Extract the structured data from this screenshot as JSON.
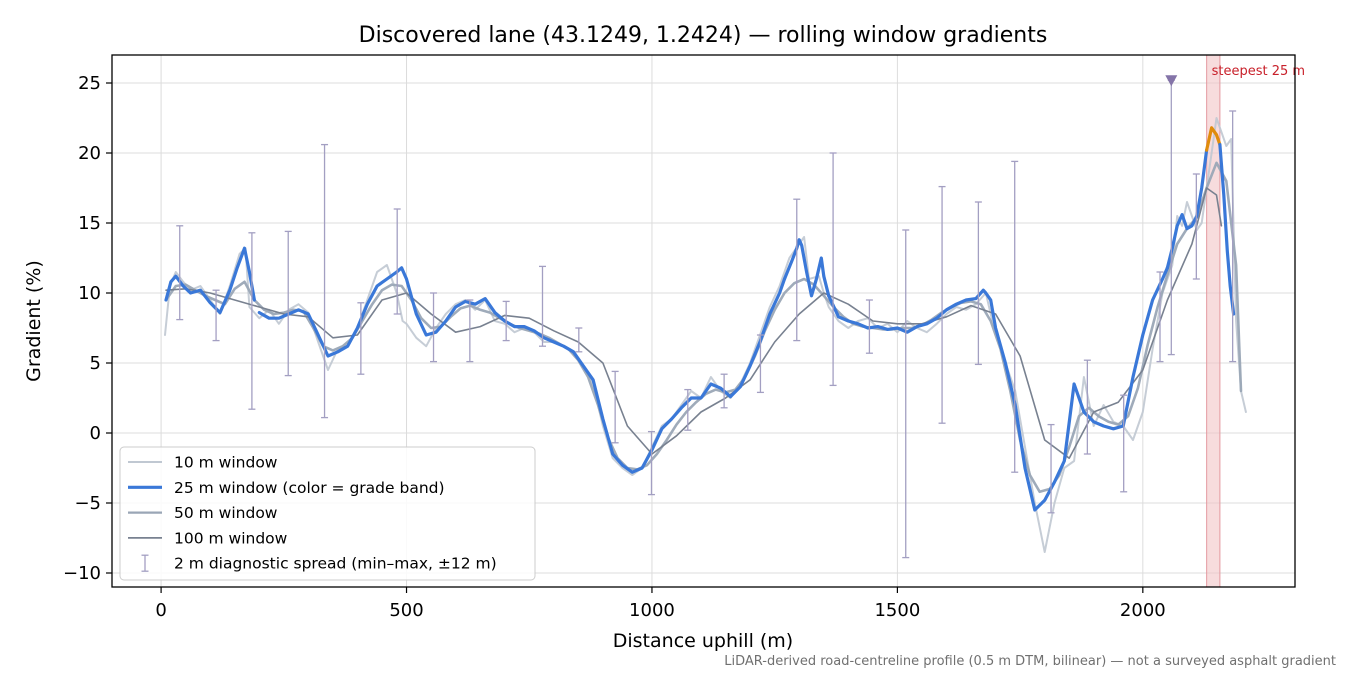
{
  "chart_data": {
    "type": "line",
    "title": "Discovered lane (43.1249, 1.2424) — rolling window gradients",
    "xlabel": "Distance uphill (m)",
    "ylabel": "Gradient (%)",
    "xlim": [
      -100,
      2310
    ],
    "ylim": [
      -11,
      27
    ],
    "x_ticks": [
      0,
      500,
      1000,
      1500,
      2000
    ],
    "y_ticks": [
      -10,
      -5,
      0,
      5,
      10,
      15,
      20,
      25
    ],
    "x_tick_labels": [
      "0",
      "500",
      "1000",
      "1500",
      "2000"
    ],
    "y_tick_labels": [
      "−10",
      "−5",
      "0",
      "5",
      "10",
      "15",
      "20",
      "25"
    ],
    "grid": true,
    "legend_position": "lower-left",
    "footnote": "LiDAR-derived road-centreline profile (0.5 m DTM, bilinear) — not a surveyed asphalt gradient",
    "colors": {
      "w10": "#c0c8d2",
      "w25_base": "#3a78d8",
      "w25_steep": "#e08c0c",
      "w50": "#9aa6b6",
      "w100": "#788190",
      "errorbar": "#a39fc2",
      "marker": "#8474a8",
      "band_fill": "#f2c4c6",
      "band_edge": "#e49aa0",
      "band_label": "#c8202a"
    },
    "steepest_band": {
      "x": [
        2130,
        2157
      ],
      "label": "steepest 25 m"
    },
    "peak_marker": {
      "x": 2058,
      "y": 25.2,
      "shape": "triangle-down"
    },
    "legend": [
      {
        "label": "10 m window",
        "style": "w10"
      },
      {
        "label": "25 m window (color = grade band)",
        "style": "w25"
      },
      {
        "label": "50 m window",
        "style": "w50"
      },
      {
        "label": "100 m window",
        "style": "w100"
      },
      {
        "label": "2 m diagnostic spread (min–max, ±12 m)",
        "style": "errorbar"
      }
    ],
    "series": [
      {
        "name": "10 m window",
        "x": [
          8,
          18,
          30,
          45,
          60,
          80,
          100,
          120,
          140,
          160,
          172,
          180,
          200,
          220,
          240,
          260,
          280,
          300,
          320,
          340,
          360,
          380,
          400,
          420,
          440,
          460,
          480,
          492,
          500,
          520,
          540,
          560,
          580,
          600,
          620,
          640,
          660,
          680,
          700,
          720,
          740,
          760,
          780,
          800,
          820,
          840,
          860,
          880,
          900,
          920,
          940,
          960,
          980,
          1000,
          1020,
          1040,
          1060,
          1080,
          1100,
          1120,
          1140,
          1160,
          1180,
          1200,
          1220,
          1240,
          1260,
          1280,
          1300,
          1310,
          1320,
          1340,
          1350,
          1360,
          1380,
          1400,
          1420,
          1440,
          1460,
          1480,
          1500,
          1520,
          1540,
          1560,
          1580,
          1600,
          1620,
          1640,
          1660,
          1680,
          1700,
          1720,
          1740,
          1760,
          1780,
          1800,
          1820,
          1840,
          1860,
          1880,
          1900,
          1920,
          1940,
          1960,
          1980,
          2000,
          2020,
          2040,
          2060,
          2070,
          2080,
          2090,
          2100,
          2110,
          2120,
          2130,
          2140,
          2150,
          2160,
          2170,
          2180,
          2190,
          2200,
          2210
        ],
        "y": [
          7,
          10.5,
          11.5,
          10.8,
          10.2,
          10.5,
          9.5,
          8.5,
          10.5,
          12.8,
          13.2,
          9,
          8.2,
          8.8,
          7.8,
          8.8,
          9.2,
          8.6,
          6.5,
          4.5,
          6,
          6.2,
          7.5,
          9.5,
          11.5,
          12,
          10,
          8,
          7.8,
          6.8,
          6.2,
          7.5,
          8.5,
          9.2,
          9.5,
          8.8,
          9.5,
          8,
          7.8,
          7.2,
          7.5,
          7.2,
          6.5,
          6.5,
          6.2,
          5.8,
          4.8,
          3.5,
          0.5,
          -1.8,
          -2.5,
          -3,
          -2.5,
          -1,
          0.5,
          1,
          2,
          3,
          2.5,
          4,
          3,
          2.5,
          3.5,
          5,
          7,
          9,
          10.5,
          12.5,
          13.5,
          14,
          11,
          11.2,
          10,
          9,
          8,
          7.5,
          8,
          8.2,
          7.5,
          7.8,
          7.2,
          8,
          7.5,
          7.2,
          7.8,
          8.5,
          9,
          8.8,
          9.2,
          10,
          7,
          5,
          3,
          -1,
          -5,
          -8.5,
          -5,
          -2.5,
          -2,
          4,
          0.5,
          2,
          0.8,
          0.5,
          -0.5,
          1.5,
          6,
          10,
          12,
          15.5,
          14.8,
          16.5,
          15.5,
          14.5,
          15,
          17.5,
          20,
          22.5,
          21.5,
          20.5,
          21,
          8,
          3,
          1.5
        ]
      },
      {
        "name": "25 m window",
        "x": [
          10,
          20,
          30,
          45,
          60,
          80,
          100,
          120,
          140,
          155,
          170,
          180,
          190
        ],
        "y": [
          9.5,
          10.8,
          11.2,
          10.5,
          10,
          10.2,
          9.3,
          8.6,
          10.2,
          11.8,
          13.2,
          11.5,
          9.5
        ]
      },
      {
        "name": "25 m window",
        "x": [
          200,
          220,
          240,
          260,
          280,
          300,
          320,
          340,
          360,
          380,
          400,
          420,
          440,
          460,
          480,
          490,
          500,
          520,
          540,
          560,
          580,
          600,
          620,
          640,
          660,
          680,
          700,
          720,
          740,
          760,
          780,
          800,
          820,
          840,
          860,
          880,
          900,
          920,
          940,
          960,
          980,
          1000,
          1020,
          1040,
          1060,
          1080,
          1100,
          1120,
          1140,
          1160,
          1180,
          1200,
          1220,
          1240,
          1260,
          1270
        ],
        "y": [
          8.6,
          8.2,
          8.2,
          8.5,
          8.8,
          8.5,
          7,
          5.5,
          5.8,
          6.2,
          7.5,
          9.2,
          10.5,
          11,
          11.5,
          11.8,
          11,
          8.5,
          7,
          7.2,
          8,
          9,
          9.4,
          9.2,
          9.6,
          8.6,
          8,
          7.6,
          7.6,
          7.3,
          6.8,
          6.5,
          6.2,
          5.8,
          4.8,
          3.8,
          1,
          -1.5,
          -2.3,
          -2.8,
          -2.5,
          -1.2,
          0.3,
          1,
          1.8,
          2.5,
          2.5,
          3.5,
          3.2,
          2.6,
          3.3,
          4.8,
          6.5,
          8.5,
          10,
          11
        ]
      },
      {
        "name": "25 m window",
        "x": [
          1270,
          1285,
          1295,
          1300,
          1305,
          1315,
          1325,
          1335,
          1345,
          1350,
          1360
        ],
        "y": [
          11,
          12.3,
          13.2,
          13.8,
          13.4,
          11.5,
          9.8,
          11,
          12.5,
          11.2,
          9.8
        ]
      },
      {
        "name": "25 m window",
        "x": [
          1360,
          1380,
          1400,
          1420,
          1440,
          1460,
          1480,
          1500,
          1520,
          1540,
          1560,
          1580,
          1600,
          1620,
          1640,
          1660,
          1675,
          1680,
          1690,
          1700,
          1720,
          1740,
          1760,
          1780,
          1800,
          1820,
          1840,
          1860,
          1880,
          1900,
          1920,
          1940,
          1960,
          1980,
          2000,
          2020,
          2040,
          2050
        ],
        "y": [
          9.8,
          8.3,
          8,
          7.8,
          7.5,
          7.6,
          7.4,
          7.5,
          7.2,
          7.6,
          7.8,
          8.2,
          8.8,
          9.2,
          9.5,
          9.6,
          10.2,
          10,
          9.5,
          7.5,
          5,
          2,
          -2.5,
          -5.5,
          -4.8,
          -3.5,
          -2,
          3.5,
          1.5,
          0.8,
          0.5,
          0.3,
          0.5,
          4,
          7,
          9.5,
          11,
          11.8
        ]
      },
      {
        "name": "25 m window",
        "x": [
          2050,
          2060,
          2070,
          2080,
          2090,
          2100,
          2110,
          2120,
          2130
        ],
        "y": [
          11.8,
          13.2,
          14.8,
          15.6,
          14.6,
          14.8,
          15.5,
          17.5,
          20.2
        ]
      },
      {
        "name": "25 m window",
        "x": [
          2130,
          2140,
          2150,
          2157
        ],
        "y": [
          20.2,
          21.8,
          21.3,
          20.6
        ]
      },
      {
        "name": "25 m window",
        "x": [
          2157,
          2165,
          2172,
          2178,
          2185
        ],
        "y": [
          20.6,
          17,
          13,
          10.5,
          8.5
        ]
      },
      {
        "name": "50 m window",
        "x": [
          10,
          30,
          50,
          70,
          90,
          110,
          130,
          150,
          170,
          190,
          210,
          230,
          250,
          270,
          290,
          310,
          330,
          350,
          370,
          390,
          410,
          430,
          450,
          470,
          490,
          510,
          530,
          550,
          570,
          590,
          610,
          630,
          650,
          670,
          690,
          710,
          730,
          750,
          770,
          790,
          810,
          830,
          850,
          870,
          890,
          910,
          930,
          950,
          970,
          990,
          1010,
          1030,
          1050,
          1070,
          1090,
          1110,
          1130,
          1150,
          1170,
          1190,
          1210,
          1230,
          1250,
          1270,
          1290,
          1310,
          1330,
          1350,
          1370,
          1390,
          1410,
          1430,
          1450,
          1470,
          1490,
          1510,
          1530,
          1550,
          1570,
          1590,
          1610,
          1630,
          1650,
          1670,
          1690,
          1710,
          1730,
          1750,
          1770,
          1790,
          1810,
          1830,
          1850,
          1870,
          1890,
          1910,
          1930,
          1950,
          1970,
          1990,
          2010,
          2030,
          2050,
          2070,
          2090,
          2110,
          2130,
          2150,
          2170,
          2190,
          2200
        ],
        "y": [
          9.5,
          10.5,
          10.6,
          10.2,
          9.8,
          9.5,
          9.2,
          10.3,
          10.8,
          9.5,
          8.8,
          8.5,
          8.6,
          8.8,
          8.7,
          7.5,
          6.2,
          5.9,
          6.2,
          6.8,
          8,
          9.2,
          10.2,
          10.6,
          10.5,
          9.5,
          8.2,
          7.5,
          7.6,
          8.3,
          8.9,
          9.1,
          8.8,
          8.6,
          8.2,
          7.8,
          7.5,
          7.3,
          7.1,
          6.8,
          6.4,
          6,
          5.2,
          4,
          2,
          -0.3,
          -1.8,
          -2.5,
          -2.6,
          -2.3,
          -1.5,
          -0.5,
          0.6,
          1.5,
          2.2,
          2.8,
          3.1,
          2.9,
          3.1,
          4,
          5.5,
          7.3,
          8.8,
          10,
          10.7,
          11,
          10.6,
          9.8,
          9,
          8.3,
          7.8,
          7.6,
          7.5,
          7.4,
          7.4,
          7.5,
          7.5,
          7.7,
          8.1,
          8.6,
          9,
          9.3,
          9.4,
          9.2,
          8,
          6,
          3,
          -0.5,
          -3,
          -4.2,
          -4,
          -3,
          -1,
          1.2,
          1.8,
          1.2,
          0.8,
          0.6,
          1.2,
          3.2,
          6.3,
          9,
          11.3,
          13.5,
          14.6,
          15.4,
          17.5,
          19.3,
          18,
          12,
          3
        ]
      },
      {
        "name": "100 m window",
        "x": [
          10,
          50,
          100,
          150,
          200,
          250,
          300,
          350,
          400,
          450,
          500,
          550,
          600,
          650,
          700,
          750,
          800,
          850,
          900,
          950,
          1000,
          1050,
          1100,
          1150,
          1200,
          1250,
          1300,
          1350,
          1400,
          1450,
          1500,
          1550,
          1600,
          1650,
          1700,
          1750,
          1800,
          1850,
          1900,
          1950,
          2000,
          2050,
          2100,
          2130,
          2150,
          2160
        ],
        "y": [
          10.2,
          10.3,
          10,
          9.5,
          9,
          8.5,
          8.3,
          6.8,
          7,
          9.5,
          10,
          8.5,
          7.2,
          7.6,
          8.4,
          8.2,
          7.3,
          6.5,
          5,
          0.5,
          -1.5,
          -0.2,
          1.5,
          2.5,
          3.8,
          6.5,
          8.5,
          10,
          9.2,
          8,
          7.8,
          7.8,
          8.3,
          9.1,
          8.5,
          5.5,
          -0.5,
          -1.8,
          1.5,
          2.2,
          4.5,
          9.5,
          13.5,
          17.5,
          17,
          14.8
        ]
      }
    ],
    "errorbars": [
      {
        "x": 38,
        "low": 8.1,
        "high": 14.8
      },
      {
        "x": 112,
        "low": 6.6,
        "high": 10.2
      },
      {
        "x": 185,
        "low": 1.7,
        "high": 14.3
      },
      {
        "x": 259,
        "low": 4.1,
        "high": 14.4
      },
      {
        "x": 333,
        "low": 1.1,
        "high": 20.6
      },
      {
        "x": 407,
        "low": 4.2,
        "high": 9.3
      },
      {
        "x": 481,
        "low": 8.5,
        "high": 16.0
      },
      {
        "x": 555,
        "low": 5.1,
        "high": 10.0
      },
      {
        "x": 629,
        "low": 5.1,
        "high": 9.5
      },
      {
        "x": 703,
        "low": 6.6,
        "high": 9.4
      },
      {
        "x": 777,
        "low": 6.2,
        "high": 11.9
      },
      {
        "x": 851,
        "low": 5.8,
        "high": 7.5
      },
      {
        "x": 925,
        "low": -0.7,
        "high": 4.4
      },
      {
        "x": 999,
        "low": -4.4,
        "high": 0.1
      },
      {
        "x": 1073,
        "low": 0.2,
        "high": 3.1
      },
      {
        "x": 1147,
        "low": 1.8,
        "high": 4.2
      },
      {
        "x": 1221,
        "low": 2.9,
        "high": 7.0
      },
      {
        "x": 1295,
        "low": 6.6,
        "high": 16.7
      },
      {
        "x": 1369,
        "low": 3.4,
        "high": 20.0
      },
      {
        "x": 1443,
        "low": 5.7,
        "high": 9.5
      },
      {
        "x": 1517,
        "low": -8.9,
        "high": 14.5
      },
      {
        "x": 1591,
        "low": 0.7,
        "high": 17.6
      },
      {
        "x": 1665,
        "low": 4.9,
        "high": 16.5
      },
      {
        "x": 1739,
        "low": -2.8,
        "high": 19.4
      },
      {
        "x": 1813,
        "low": -5.7,
        "high": 0.6
      },
      {
        "x": 1887,
        "low": -1.5,
        "high": 5.2
      },
      {
        "x": 1961,
        "low": -4.2,
        "high": 2.7
      },
      {
        "x": 2035,
        "low": 5.1,
        "high": 11.5
      },
      {
        "x": 2109,
        "low": 11.0,
        "high": 18.5
      },
      {
        "x": 2183,
        "low": 5.1,
        "high": 23.0
      },
      {
        "x": 2058,
        "low": 5.6,
        "high": 25.2
      }
    ]
  }
}
